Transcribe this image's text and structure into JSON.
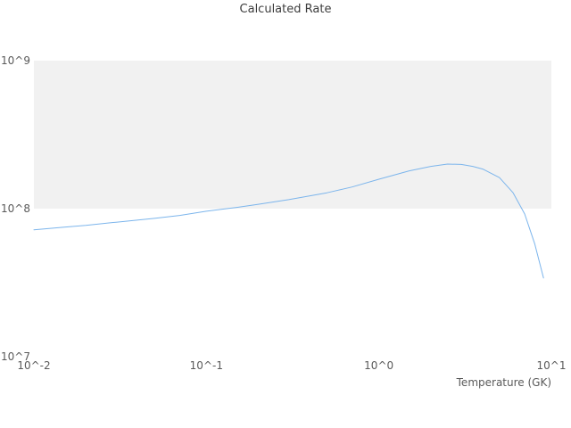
{
  "title": "Calculated Rate",
  "chart_data": {
    "type": "line",
    "title": "Calculated Rate",
    "xlabel": "Temperature (GK)",
    "ylabel": "",
    "xscale": "log",
    "yscale": "log",
    "xlim": [
      0.01,
      10
    ],
    "ylim": [
      10000000.0,
      1000000000.0
    ],
    "xticks": [
      {
        "value": 0.01,
        "label": "10^-2"
      },
      {
        "value": 0.1,
        "label": "10^-1"
      },
      {
        "value": 1,
        "label": "10^0"
      },
      {
        "value": 10,
        "label": "10^1"
      }
    ],
    "yticks": [
      {
        "value": 10000000.0,
        "label": "10^7"
      },
      {
        "value": 100000000.0,
        "label": "10^8"
      },
      {
        "value": 1000000000.0,
        "label": "10^9"
      }
    ],
    "band": {
      "from": 100000000.0,
      "to": 1000000000.0,
      "color": "#f1f1f1"
    },
    "line_color": "#7cb5ec",
    "grid": false,
    "legend": "none",
    "series": [
      {
        "name": "Calculated Rate",
        "points": [
          [
            0.01,
            72000000.0
          ],
          [
            0.015,
            75000000.0
          ],
          [
            0.02,
            77000000.0
          ],
          [
            0.03,
            81000000.0
          ],
          [
            0.05,
            86000000.0
          ],
          [
            0.07,
            90000000.0
          ],
          [
            0.1,
            96000000.0
          ],
          [
            0.15,
            102000000.0
          ],
          [
            0.2,
            107000000.0
          ],
          [
            0.3,
            115000000.0
          ],
          [
            0.5,
            128000000.0
          ],
          [
            0.7,
            140000000.0
          ],
          [
            1.0,
            158000000.0
          ],
          [
            1.5,
            180000000.0
          ],
          [
            2.0,
            193000000.0
          ],
          [
            2.5,
            200000000.0
          ],
          [
            3.0,
            199000000.0
          ],
          [
            3.5,
            193000000.0
          ],
          [
            4.0,
            185000000.0
          ],
          [
            5.0,
            162000000.0
          ],
          [
            6.0,
            128000000.0
          ],
          [
            7.0,
            92000000.0
          ],
          [
            8.0,
            58000000.0
          ],
          [
            9.0,
            34000000.0
          ]
        ]
      }
    ]
  }
}
